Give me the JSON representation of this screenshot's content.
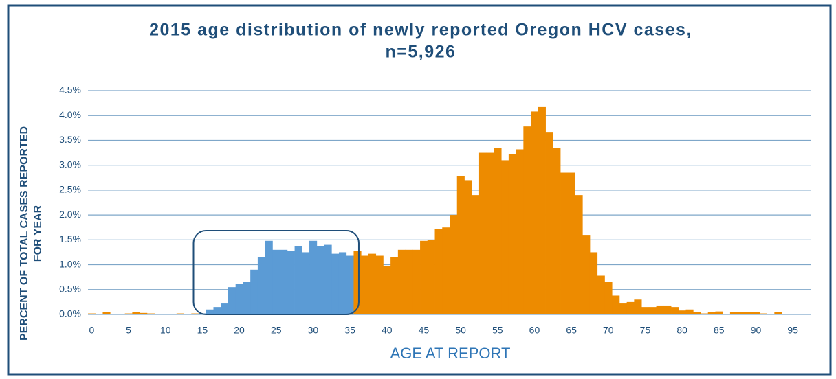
{
  "chart_data": {
    "type": "bar",
    "title": [
      "2015 age distribution of newly reported Oregon HCV cases,",
      "n=5,926"
    ],
    "xlabel": "AGE AT REPORT",
    "ylabel": [
      "PERCENT OF TOTAL CASES REPORTED",
      "FOR YEAR"
    ],
    "x": [
      0,
      1,
      2,
      3,
      4,
      5,
      6,
      7,
      8,
      9,
      10,
      11,
      12,
      13,
      14,
      15,
      16,
      17,
      18,
      19,
      20,
      21,
      22,
      23,
      24,
      25,
      26,
      27,
      28,
      29,
      30,
      31,
      32,
      33,
      34,
      35,
      36,
      37,
      38,
      39,
      40,
      41,
      42,
      43,
      44,
      45,
      46,
      47,
      48,
      49,
      50,
      51,
      52,
      53,
      54,
      55,
      56,
      57,
      58,
      59,
      60,
      61,
      62,
      63,
      64,
      65,
      66,
      67,
      68,
      69,
      70,
      71,
      72,
      73,
      74,
      75,
      76,
      77,
      78,
      79,
      80,
      81,
      82,
      83,
      84,
      85,
      86,
      87,
      88,
      89,
      90,
      91,
      92,
      93
    ],
    "values": [
      0.02,
      0,
      0.05,
      0,
      0,
      0.02,
      0.05,
      0.03,
      0.02,
      0,
      0,
      0,
      0.02,
      0,
      0.02,
      0.02,
      0.1,
      0.15,
      0.22,
      0.55,
      0.62,
      0.65,
      0.9,
      1.15,
      1.48,
      1.3,
      1.3,
      1.28,
      1.38,
      1.25,
      1.48,
      1.38,
      1.4,
      1.22,
      1.25,
      1.18,
      1.27,
      1.18,
      1.22,
      1.18,
      0.98,
      1.15,
      1.3,
      1.3,
      1.3,
      1.48,
      1.5,
      1.72,
      1.75,
      2.0,
      2.78,
      2.7,
      2.4,
      3.25,
      3.25,
      3.35,
      3.1,
      3.22,
      3.32,
      3.78,
      4.08,
      4.17,
      3.67,
      3.35,
      2.85,
      2.85,
      2.4,
      1.6,
      1.25,
      0.78,
      0.65,
      0.38,
      0.22,
      0.25,
      0.3,
      0.15,
      0.15,
      0.18,
      0.18,
      0.15,
      0.08,
      0.1,
      0.05,
      0.02,
      0.05,
      0.06,
      0.01,
      0.05,
      0.05,
      0.05,
      0.05,
      0.02,
      0.01,
      0.05
    ],
    "color": "#ed8b00",
    "highlight": {
      "range": [
        15,
        35
      ],
      "color": "#5b9bd5"
    },
    "xlim": [
      -0.5,
      97.5
    ],
    "xticks": [
      0,
      5,
      10,
      15,
      20,
      25,
      30,
      35,
      40,
      45,
      50,
      55,
      60,
      65,
      70,
      75,
      80,
      85,
      90,
      95
    ],
    "ylim": [
      0,
      4.5
    ],
    "yticks": [
      {
        "value": 0,
        "label": "0.0%"
      },
      {
        "value": 0.5,
        "label": "0.5%"
      },
      {
        "value": 1,
        "label": "1.0%"
      },
      {
        "value": 1.5,
        "label": "1.5%"
      },
      {
        "value": 2,
        "label": "2.0%"
      },
      {
        "value": 2.5,
        "label": "2.5%"
      },
      {
        "value": 3,
        "label": "3.0%"
      },
      {
        "value": 3.5,
        "label": "3.5%"
      },
      {
        "value": 4,
        "label": "4.0%"
      },
      {
        "value": 4.5,
        "label": "4.5%"
      }
    ],
    "grid": true
  }
}
